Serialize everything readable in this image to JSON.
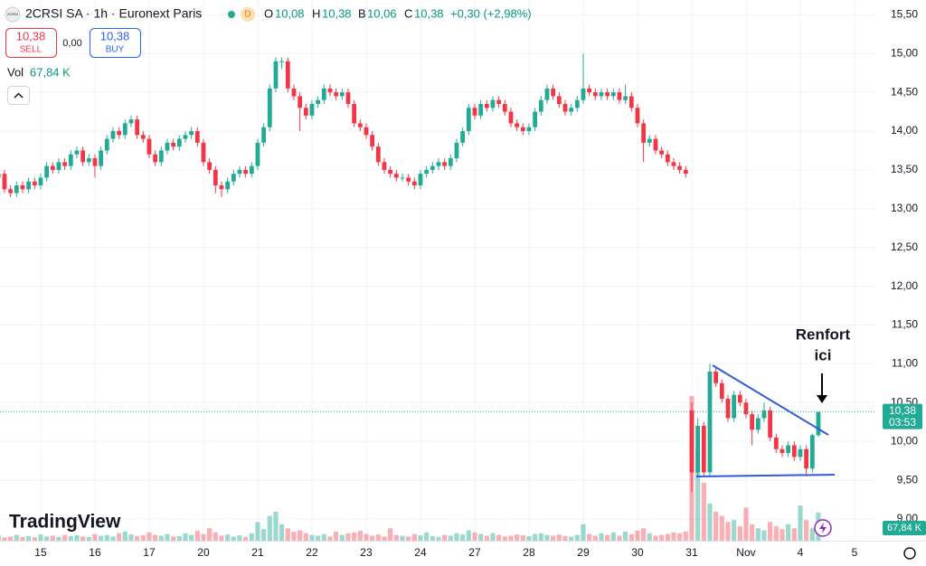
{
  "header": {
    "logo": "2CRSI",
    "symbol": "2CRSI SA · 1h · Euronext Paris",
    "d": "D",
    "o_label": "O",
    "o": "10,08",
    "h_label": "H",
    "h": "10,38",
    "b_label": "B",
    "b": "10,06",
    "c_label": "C",
    "c": "10,38",
    "change": "+0,30 (+2,98%)",
    "sell_price": "10,38",
    "sell": "SELL",
    "spread": "0,00",
    "buy_price": "10,38",
    "buy": "BUY",
    "vol_label": "Vol",
    "vol_value": "67,84 K"
  },
  "annotation": {
    "line1": "Renfort",
    "line2": "ici"
  },
  "brand": "TradingView",
  "price_label": {
    "price": "10,38",
    "countdown": "03:53"
  },
  "chart_data": {
    "type": "candlestick",
    "colors": {
      "up": "#22ab94",
      "down": "#f23645",
      "up_volume": "rgba(34,171,148,0.45)",
      "down_volume": "rgba(242,54,69,0.4)",
      "last_price": "#22ab94"
    },
    "last_price": 10.38,
    "ylim": [
      8.72,
      15.69
    ],
    "yticks": [
      {
        "value": 9,
        "label": "9,00"
      },
      {
        "value": 9.5,
        "label": "9,50"
      },
      {
        "value": 10,
        "label": "10,00"
      },
      {
        "value": 10.5,
        "label": "10,50"
      },
      {
        "value": 11,
        "label": "11,00"
      },
      {
        "value": 11.5,
        "label": "11,50"
      },
      {
        "value": 12,
        "label": "12,00"
      },
      {
        "value": 12.5,
        "label": "12,50"
      },
      {
        "value": 13,
        "label": "13,00"
      },
      {
        "value": 13.5,
        "label": "13,50"
      },
      {
        "value": 14,
        "label": "14,00"
      },
      {
        "value": 14.5,
        "label": "14,50"
      },
      {
        "value": 15,
        "label": "15,00"
      },
      {
        "value": 15.5,
        "label": "15,50"
      }
    ],
    "xticks": [
      {
        "value": 7,
        "label": "15"
      },
      {
        "value": 16,
        "label": "16"
      },
      {
        "value": 25,
        "label": "17"
      },
      {
        "value": 34,
        "label": "20"
      },
      {
        "value": 43,
        "label": "21"
      },
      {
        "value": 52,
        "label": "22"
      },
      {
        "value": 61,
        "label": "23"
      },
      {
        "value": 70,
        "label": "24"
      },
      {
        "value": 79,
        "label": "27"
      },
      {
        "value": 88,
        "label": "28"
      },
      {
        "value": 97,
        "label": "29"
      },
      {
        "value": 106,
        "label": "30"
      },
      {
        "value": 115,
        "label": "31"
      },
      {
        "value": 124,
        "label": "Nov"
      },
      {
        "value": 133,
        "label": "4"
      },
      {
        "value": 142,
        "label": "5"
      }
    ],
    "ohlc": [
      [
        13.4,
        13.5,
        13.35,
        13.45
      ],
      [
        13.45,
        13.5,
        13.2,
        13.25
      ],
      [
        13.25,
        13.3,
        13.15,
        13.2
      ],
      [
        13.2,
        13.35,
        13.15,
        13.3
      ],
      [
        13.3,
        13.35,
        13.2,
        13.25
      ],
      [
        13.25,
        13.4,
        13.2,
        13.35
      ],
      [
        13.35,
        13.4,
        13.25,
        13.3
      ],
      [
        13.3,
        13.45,
        13.25,
        13.4
      ],
      [
        13.4,
        13.6,
        13.35,
        13.55
      ],
      [
        13.55,
        13.6,
        13.45,
        13.5
      ],
      [
        13.5,
        13.65,
        13.45,
        13.6
      ],
      [
        13.6,
        13.65,
        13.5,
        13.55
      ],
      [
        13.55,
        13.75,
        13.5,
        13.7
      ],
      [
        13.7,
        13.8,
        13.65,
        13.75
      ],
      [
        13.75,
        13.8,
        13.55,
        13.6
      ],
      [
        13.6,
        13.7,
        13.55,
        13.65
      ],
      [
        13.65,
        13.7,
        13.4,
        13.55
      ],
      [
        13.55,
        13.8,
        13.5,
        13.75
      ],
      [
        13.75,
        13.95,
        13.7,
        13.9
      ],
      [
        13.9,
        14.05,
        13.85,
        14.0
      ],
      [
        14.0,
        14.05,
        13.9,
        13.95
      ],
      [
        13.95,
        14.15,
        13.9,
        14.1
      ],
      [
        14.1,
        14.2,
        14.05,
        14.15
      ],
      [
        14.15,
        14.2,
        13.9,
        13.95
      ],
      [
        13.95,
        14.0,
        13.85,
        13.9
      ],
      [
        13.9,
        13.95,
        13.65,
        13.7
      ],
      [
        13.7,
        13.75,
        13.55,
        13.6
      ],
      [
        13.6,
        13.8,
        13.55,
        13.75
      ],
      [
        13.75,
        13.9,
        13.7,
        13.85
      ],
      [
        13.85,
        13.9,
        13.75,
        13.8
      ],
      [
        13.8,
        13.95,
        13.75,
        13.9
      ],
      [
        13.9,
        14.0,
        13.85,
        13.95
      ],
      [
        13.95,
        14.05,
        13.9,
        14.0
      ],
      [
        14.0,
        14.05,
        13.8,
        13.85
      ],
      [
        13.85,
        13.9,
        13.55,
        13.6
      ],
      [
        13.6,
        13.65,
        13.45,
        13.5
      ],
      [
        13.5,
        13.55,
        13.2,
        13.3
      ],
      [
        13.3,
        13.35,
        13.15,
        13.25
      ],
      [
        13.25,
        13.4,
        13.2,
        13.35
      ],
      [
        13.35,
        13.5,
        13.3,
        13.45
      ],
      [
        13.45,
        13.55,
        13.4,
        13.5
      ],
      [
        13.5,
        13.55,
        13.4,
        13.45
      ],
      [
        13.45,
        13.6,
        13.4,
        13.55
      ],
      [
        13.55,
        13.9,
        13.5,
        13.85
      ],
      [
        13.85,
        14.1,
        13.8,
        14.05
      ],
      [
        14.05,
        14.6,
        14.0,
        14.55
      ],
      [
        14.55,
        14.95,
        14.5,
        14.9
      ],
      [
        14.9,
        14.95,
        14.8,
        14.9
      ],
      [
        14.9,
        14.95,
        14.5,
        14.55
      ],
      [
        14.55,
        14.6,
        14.4,
        14.45
      ],
      [
        14.45,
        14.5,
        14.0,
        14.3
      ],
      [
        14.3,
        14.35,
        14.15,
        14.2
      ],
      [
        14.2,
        14.4,
        14.15,
        14.35
      ],
      [
        14.35,
        14.45,
        14.3,
        14.4
      ],
      [
        14.4,
        14.6,
        14.35,
        14.55
      ],
      [
        14.55,
        14.6,
        14.45,
        14.5
      ],
      [
        14.5,
        14.55,
        14.4,
        14.45
      ],
      [
        14.45,
        14.55,
        14.4,
        14.5
      ],
      [
        14.5,
        14.55,
        14.3,
        14.35
      ],
      [
        14.35,
        14.4,
        14.05,
        14.1
      ],
      [
        14.1,
        14.15,
        14.0,
        14.05
      ],
      [
        14.05,
        14.1,
        13.9,
        13.95
      ],
      [
        13.95,
        14.0,
        13.75,
        13.8
      ],
      [
        13.8,
        13.85,
        13.55,
        13.6
      ],
      [
        13.6,
        13.65,
        13.45,
        13.5
      ],
      [
        13.5,
        13.55,
        13.4,
        13.45
      ],
      [
        13.45,
        13.5,
        13.35,
        13.4
      ],
      [
        13.4,
        13.45,
        13.35,
        13.4
      ],
      [
        13.4,
        13.45,
        13.3,
        13.35
      ],
      [
        13.35,
        13.4,
        13.25,
        13.3
      ],
      [
        13.3,
        13.5,
        13.25,
        13.45
      ],
      [
        13.45,
        13.55,
        13.4,
        13.5
      ],
      [
        13.5,
        13.6,
        13.45,
        13.55
      ],
      [
        13.55,
        13.65,
        13.5,
        13.6
      ],
      [
        13.6,
        13.65,
        13.5,
        13.55
      ],
      [
        13.55,
        13.7,
        13.5,
        13.65
      ],
      [
        13.65,
        13.9,
        13.6,
        13.85
      ],
      [
        13.85,
        14.05,
        13.8,
        14.0
      ],
      [
        14.0,
        14.35,
        13.95,
        14.3
      ],
      [
        14.3,
        14.35,
        14.15,
        14.2
      ],
      [
        14.2,
        14.4,
        14.15,
        14.35
      ],
      [
        14.35,
        14.4,
        14.25,
        14.3
      ],
      [
        14.3,
        14.45,
        14.25,
        14.4
      ],
      [
        14.4,
        14.45,
        14.3,
        14.35
      ],
      [
        14.35,
        14.4,
        14.2,
        14.25
      ],
      [
        14.25,
        14.3,
        14.05,
        14.1
      ],
      [
        14.1,
        14.15,
        14.0,
        14.05
      ],
      [
        14.05,
        14.1,
        13.95,
        14.0
      ],
      [
        14.0,
        14.1,
        13.95,
        14.05
      ],
      [
        14.05,
        14.3,
        14.0,
        14.25
      ],
      [
        14.25,
        14.45,
        14.2,
        14.4
      ],
      [
        14.4,
        14.6,
        14.35,
        14.55
      ],
      [
        14.55,
        14.6,
        14.4,
        14.45
      ],
      [
        14.45,
        14.5,
        14.3,
        14.35
      ],
      [
        14.35,
        14.4,
        14.2,
        14.25
      ],
      [
        14.25,
        14.35,
        14.2,
        14.3
      ],
      [
        14.3,
        14.45,
        14.25,
        14.4
      ],
      [
        14.4,
        15.0,
        14.35,
        14.55
      ],
      [
        14.55,
        14.6,
        14.45,
        14.5
      ],
      [
        14.5,
        14.55,
        14.4,
        14.45
      ],
      [
        14.45,
        14.55,
        14.4,
        14.5
      ],
      [
        14.5,
        14.55,
        14.4,
        14.45
      ],
      [
        14.45,
        14.55,
        14.4,
        14.5
      ],
      [
        14.5,
        14.55,
        14.35,
        14.4
      ],
      [
        14.4,
        14.6,
        14.35,
        14.45
      ],
      [
        14.45,
        14.5,
        14.25,
        14.3
      ],
      [
        14.3,
        14.35,
        14.05,
        14.1
      ],
      [
        14.1,
        14.15,
        13.6,
        13.85
      ],
      [
        13.85,
        13.95,
        13.8,
        13.9
      ],
      [
        13.9,
        13.95,
        13.7,
        13.75
      ],
      [
        13.75,
        13.8,
        13.65,
        13.7
      ],
      [
        13.7,
        13.75,
        13.55,
        13.6
      ],
      [
        13.6,
        13.65,
        13.5,
        13.55
      ],
      [
        13.55,
        13.6,
        13.45,
        13.5
      ],
      [
        13.5,
        13.55,
        13.4,
        13.45
      ],
      [
        10.4,
        10.5,
        9.35,
        9.6
      ],
      [
        9.6,
        10.3,
        9.55,
        10.2
      ],
      [
        10.2,
        10.25,
        9.55,
        9.6
      ],
      [
        9.6,
        11.0,
        9.55,
        10.9
      ],
      [
        10.9,
        10.95,
        10.7,
        10.75
      ],
      [
        10.75,
        10.8,
        10.5,
        10.55
      ],
      [
        10.55,
        10.6,
        10.25,
        10.3
      ],
      [
        10.3,
        10.65,
        10.25,
        10.6
      ],
      [
        10.6,
        10.65,
        10.45,
        10.5
      ],
      [
        10.5,
        10.55,
        10.3,
        10.35
      ],
      [
        10.35,
        10.4,
        9.95,
        10.15
      ],
      [
        10.15,
        10.35,
        10.1,
        10.3
      ],
      [
        10.3,
        10.5,
        10.25,
        10.4
      ],
      [
        10.4,
        10.45,
        10.0,
        10.05
      ],
      [
        10.05,
        10.1,
        9.85,
        9.9
      ],
      [
        9.9,
        9.95,
        9.8,
        9.85
      ],
      [
        9.85,
        10.0,
        9.8,
        9.95
      ],
      [
        9.95,
        10.0,
        9.75,
        9.8
      ],
      [
        9.8,
        9.95,
        9.75,
        9.9
      ],
      [
        9.9,
        9.95,
        9.55,
        9.65
      ],
      [
        9.65,
        10.1,
        9.6,
        10.08
      ],
      [
        10.08,
        10.38,
        10.06,
        10.38
      ]
    ],
    "volume": [
      12,
      8,
      10,
      14,
      9,
      11,
      8,
      15,
      10,
      12,
      9,
      14,
      11,
      13,
      10,
      9,
      16,
      12,
      14,
      10,
      18,
      22,
      15,
      11,
      13,
      20,
      14,
      12,
      16,
      10,
      11,
      18,
      14,
      24,
      16,
      30,
      20,
      12,
      15,
      10,
      13,
      9,
      18,
      45,
      28,
      60,
      70,
      40,
      30,
      22,
      25,
      18,
      14,
      12,
      16,
      10,
      22,
      14,
      18,
      20,
      24,
      16,
      12,
      15,
      10,
      30,
      14,
      12,
      10,
      16,
      13,
      20,
      11,
      9,
      14,
      12,
      18,
      15,
      25,
      20,
      16,
      12,
      18,
      14,
      10,
      12,
      15,
      13,
      11,
      16,
      18,
      14,
      12,
      15,
      11,
      10,
      14,
      40,
      16,
      12,
      18,
      14,
      20,
      12,
      22,
      16,
      24,
      30,
      18,
      12,
      14,
      16,
      20,
      18,
      22,
      350,
      220,
      140,
      90,
      70,
      60,
      45,
      50,
      35,
      80,
      40,
      30,
      25,
      45,
      35,
      28,
      40,
      30,
      85,
      50,
      30,
      67.84
    ]
  }
}
